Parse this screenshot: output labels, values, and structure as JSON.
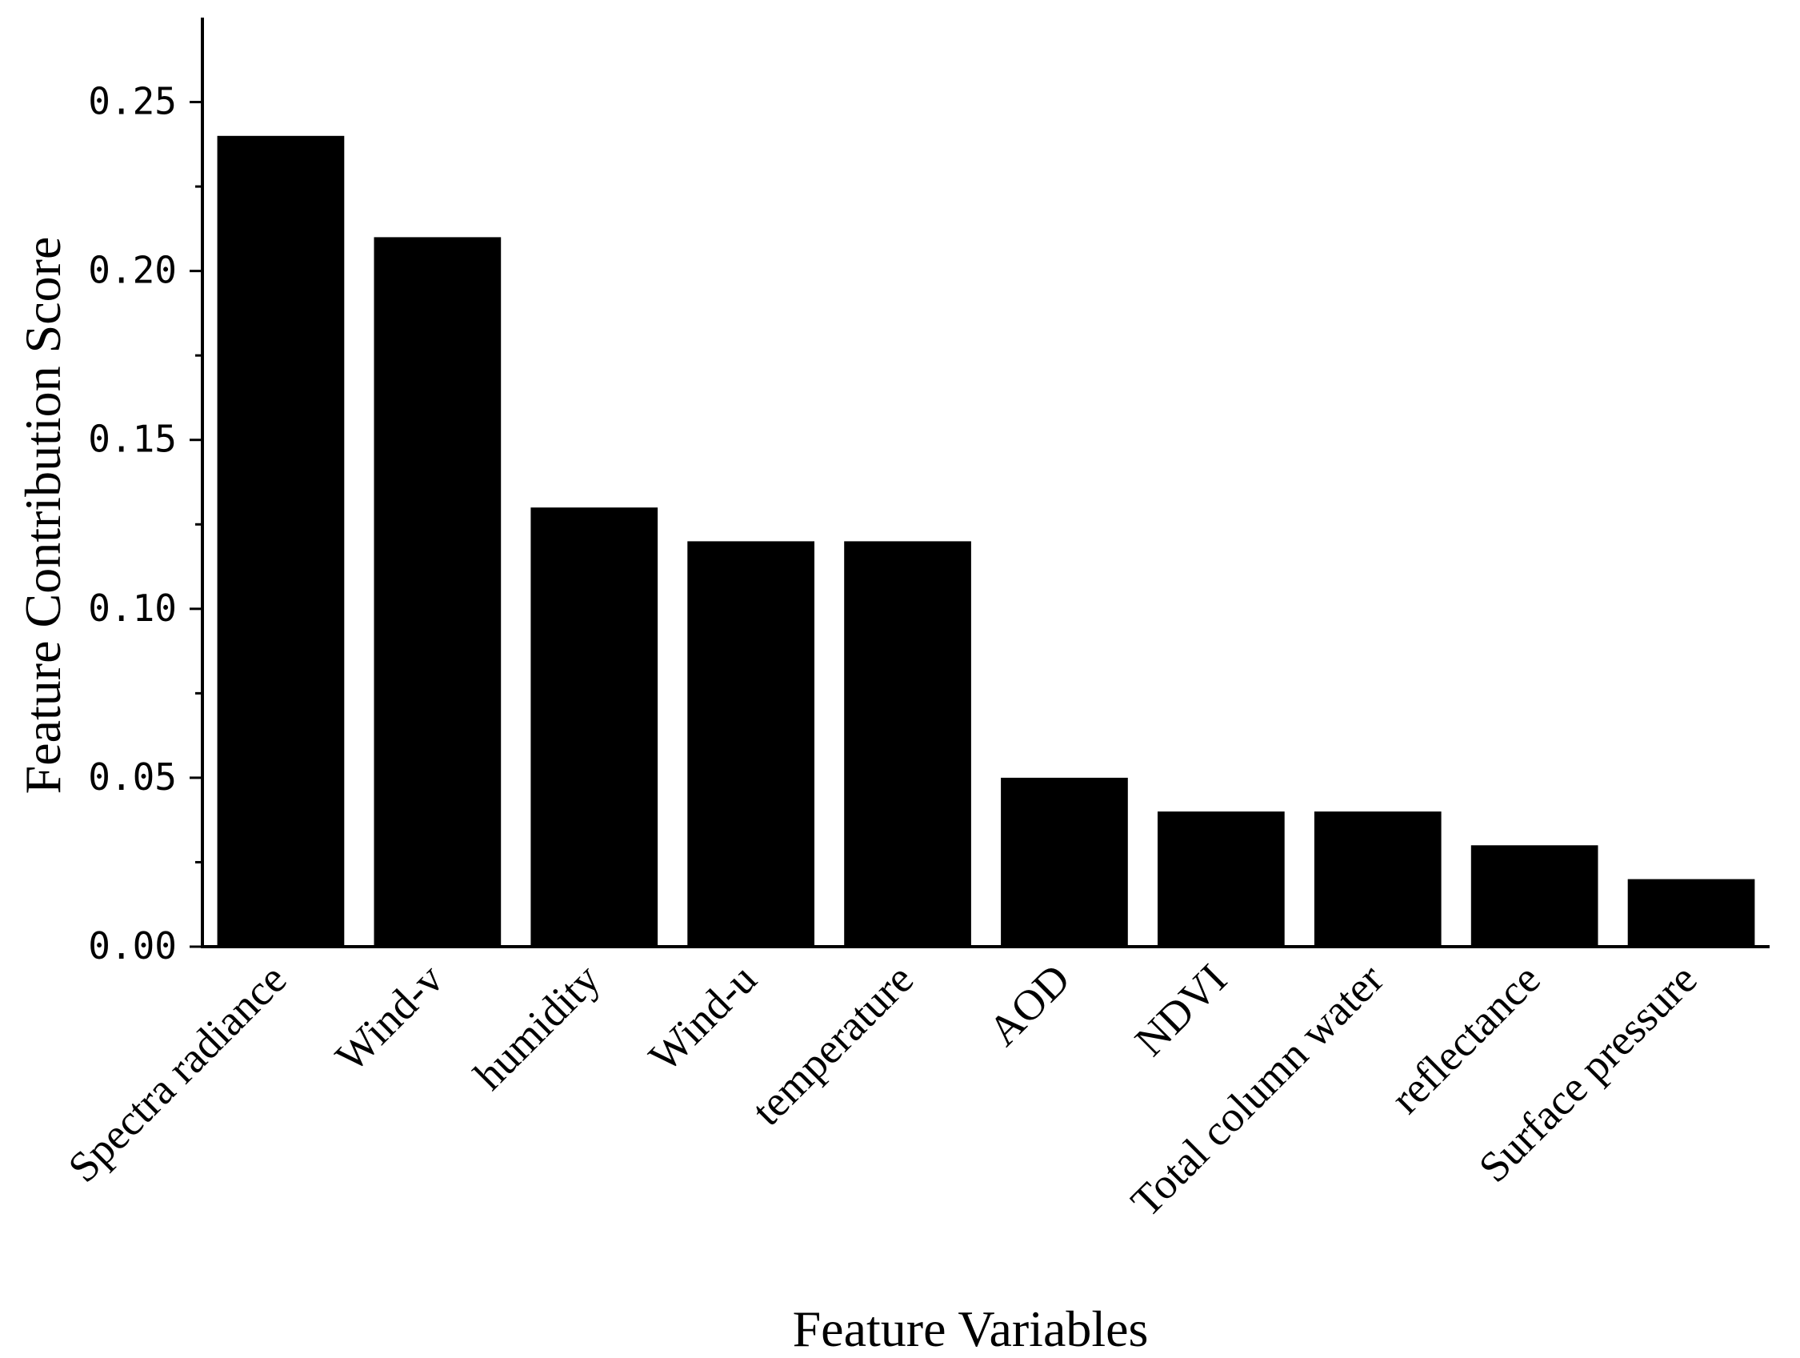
{
  "chart_data": {
    "type": "bar",
    "title": "",
    "xlabel": "Feature Variables",
    "ylabel": "Feature Contribution Score",
    "categories": [
      "Spectra radiance",
      "Wind-v",
      "humidity",
      "Wind-u",
      "temperature",
      "AOD",
      "NDVI",
      "Total column water",
      "reflectance",
      "Surface pressure"
    ],
    "values": [
      0.24,
      0.21,
      0.13,
      0.12,
      0.12,
      0.05,
      0.04,
      0.04,
      0.03,
      0.02
    ],
    "ylim": [
      0,
      0.275
    ],
    "yticks": [
      "0.00",
      "0.05",
      "0.10",
      "0.15",
      "0.20",
      "0.25"
    ],
    "bar_color": "#000000",
    "grid": false,
    "legend": "none"
  }
}
